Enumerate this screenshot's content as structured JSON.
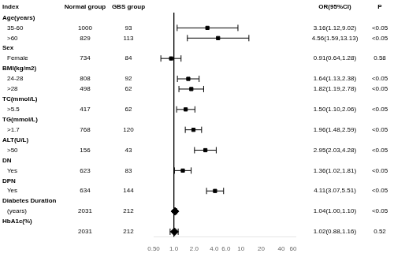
{
  "chart_data": {
    "type": "forest",
    "headers": [
      "Index",
      "Normal group",
      "GBS group",
      "OR(95%CI)",
      "P"
    ],
    "log": "x",
    "xlim": [
      0.5,
      65
    ],
    "xticks": [
      {
        "value": 0.5,
        "label": "0.50"
      },
      {
        "value": 1.0,
        "label": "1.0"
      },
      {
        "value": 2.0,
        "label": "2.0"
      },
      {
        "value": 4.0,
        "label": "4.0"
      },
      {
        "value": 6.0,
        "label": "6.0"
      },
      10,
      20,
      40,
      60
    ],
    "ref_line": 1.0,
    "grid": false,
    "color": "#000000",
    "rows": [
      {
        "label": "Age(years)",
        "heading": true
      },
      {
        "label": "35-60",
        "normal": 1000,
        "gbs": 93,
        "value": 3.16,
        "ci_low": 1.12,
        "ci_high": 9.02,
        "value_label": "3.16(1.12,9.02)",
        "p_label": "<0.05",
        "marker": "square"
      },
      {
        "label": ">60",
        "normal": 829,
        "gbs": 113,
        "value": 4.56,
        "ci_low": 1.59,
        "ci_high": 13.13,
        "value_label": "4.56(1.59,13.13)",
        "p_label": "<0.05",
        "marker": "square"
      },
      {
        "label": "Sex",
        "heading": true
      },
      {
        "label": "Female",
        "normal": 734,
        "gbs": 84,
        "value": 0.91,
        "ci_low": 0.64,
        "ci_high": 1.28,
        "value_label": "0.91(0.64,1.28)",
        "p_label": "0.58",
        "marker": "square"
      },
      {
        "label": "BMI(kg/m2)",
        "heading": true
      },
      {
        "label": "24-28",
        "normal": 808,
        "gbs": 92,
        "value": 1.64,
        "ci_low": 1.13,
        "ci_high": 2.38,
        "value_label": "1.64(1.13,2.38)",
        "p_label": "<0.05",
        "marker": "square"
      },
      {
        "label": ">28",
        "normal": 498,
        "gbs": 62,
        "value": 1.82,
        "ci_low": 1.19,
        "ci_high": 2.78,
        "value_label": "1.82(1.19,2.78)",
        "p_label": "<0.05",
        "marker": "square"
      },
      {
        "label": "TC(mmol/L)",
        "heading": true
      },
      {
        "label": ">5.5",
        "normal": 417,
        "gbs": 62,
        "value": 1.5,
        "ci_low": 1.1,
        "ci_high": 2.06,
        "value_label": "1.50(1.10,2.06)",
        "p_label": "<0.05",
        "marker": "square"
      },
      {
        "label": "TG(mmol/L)",
        "heading": true
      },
      {
        "label": ">1.7",
        "normal": 768,
        "gbs": 120,
        "value": 1.96,
        "ci_low": 1.48,
        "ci_high": 2.59,
        "value_label": "1.96(1.48,2.59)",
        "p_label": "<0.05",
        "marker": "square"
      },
      {
        "label": "ALT(U/L)",
        "heading": true
      },
      {
        "label": ">50",
        "normal": 156,
        "gbs": 43,
        "value": 2.95,
        "ci_low": 2.03,
        "ci_high": 4.28,
        "value_label": "2.95(2.03,4.28)",
        "p_label": "<0.05",
        "marker": "square"
      },
      {
        "label": "DN",
        "heading": true
      },
      {
        "label": "Yes",
        "normal": 623,
        "gbs": 83,
        "value": 1.36,
        "ci_low": 1.02,
        "ci_high": 1.81,
        "value_label": "1.36(1.02,1.81)",
        "p_label": "<0.05",
        "marker": "square"
      },
      {
        "label": "DPN",
        "heading": true
      },
      {
        "label": "Yes",
        "normal": 634,
        "gbs": 144,
        "value": 4.11,
        "ci_low": 3.07,
        "ci_high": 5.51,
        "value_label": "4.11(3.07,5.51)",
        "p_label": "<0.05",
        "marker": "square"
      },
      {
        "label": "Diabetes Duration",
        "heading": true
      },
      {
        "label": "(years)",
        "normal": 2031,
        "gbs": 212,
        "value": 1.04,
        "ci_low": 1.0,
        "ci_high": 1.1,
        "value_label": "1.04(1.00,1.10)",
        "p_label": "<0.05",
        "marker": "diamond"
      },
      {
        "label": "HbA1c(%)",
        "heading": true
      },
      {
        "label": null,
        "normal": 2031,
        "gbs": 212,
        "value": 1.02,
        "ci_low": 0.88,
        "ci_high": 1.16,
        "value_label": "1.02(0.88,1.16)",
        "p_label": "0.52",
        "marker": "diamond"
      }
    ]
  }
}
